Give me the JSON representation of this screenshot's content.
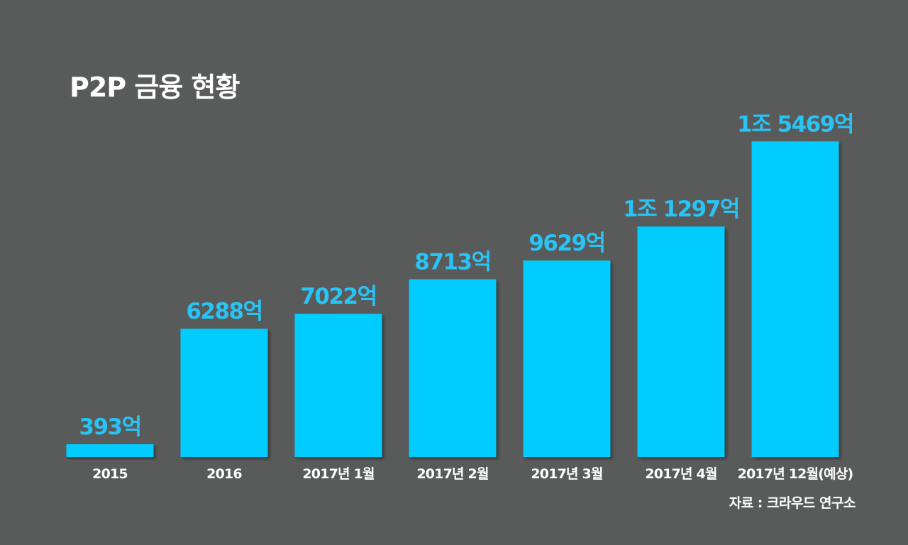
{
  "chart_data": {
    "type": "bar",
    "title": "P2P 금융 현황",
    "categories": [
      "2015",
      "2016",
      "2017년 1월",
      "2017년 2월",
      "2017년 3월",
      "2017년 4월",
      "2017년 12월(예상)"
    ],
    "values": [
      393,
      6288,
      7022,
      8713,
      9629,
      11297,
      15469
    ],
    "value_labels": [
      "393억",
      "6288억",
      "7022억",
      "8713억",
      "9629억",
      "1조 1297억",
      "1조 5469억"
    ],
    "unit": "억",
    "xlabel": "",
    "ylabel": "",
    "grid": false,
    "legend": "none",
    "source": "자료 : 크라우드 연구소"
  },
  "colors": {
    "background": "#595a5a",
    "bar": "#00ccff",
    "value_label": "#29c4f6",
    "text": "#ffffff"
  }
}
